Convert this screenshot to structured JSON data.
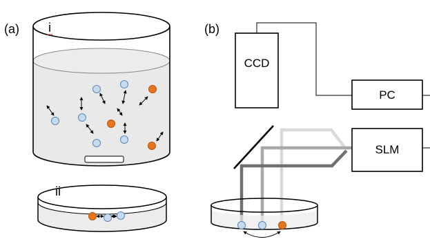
{
  "panels": {
    "a": {
      "label": "(a)"
    },
    "b": {
      "label": "(b)"
    }
  },
  "vessels": {
    "beaker": {
      "label": "i"
    },
    "dish": {
      "label": "ii"
    }
  },
  "devices": {
    "ccd": "CCD",
    "pc": "PC",
    "slm": "SLM"
  },
  "colors": {
    "particle_blue": "#c5dcf0",
    "particle_blue_stroke": "#5f86b3",
    "particle_orange": "#e8741c",
    "particle_orange_stroke": "#b5560f",
    "liquid": "#e9e9e9",
    "beam_dark": "#707070",
    "beam_mid": "#a8a8a8",
    "beam_light": "#dadada"
  }
}
